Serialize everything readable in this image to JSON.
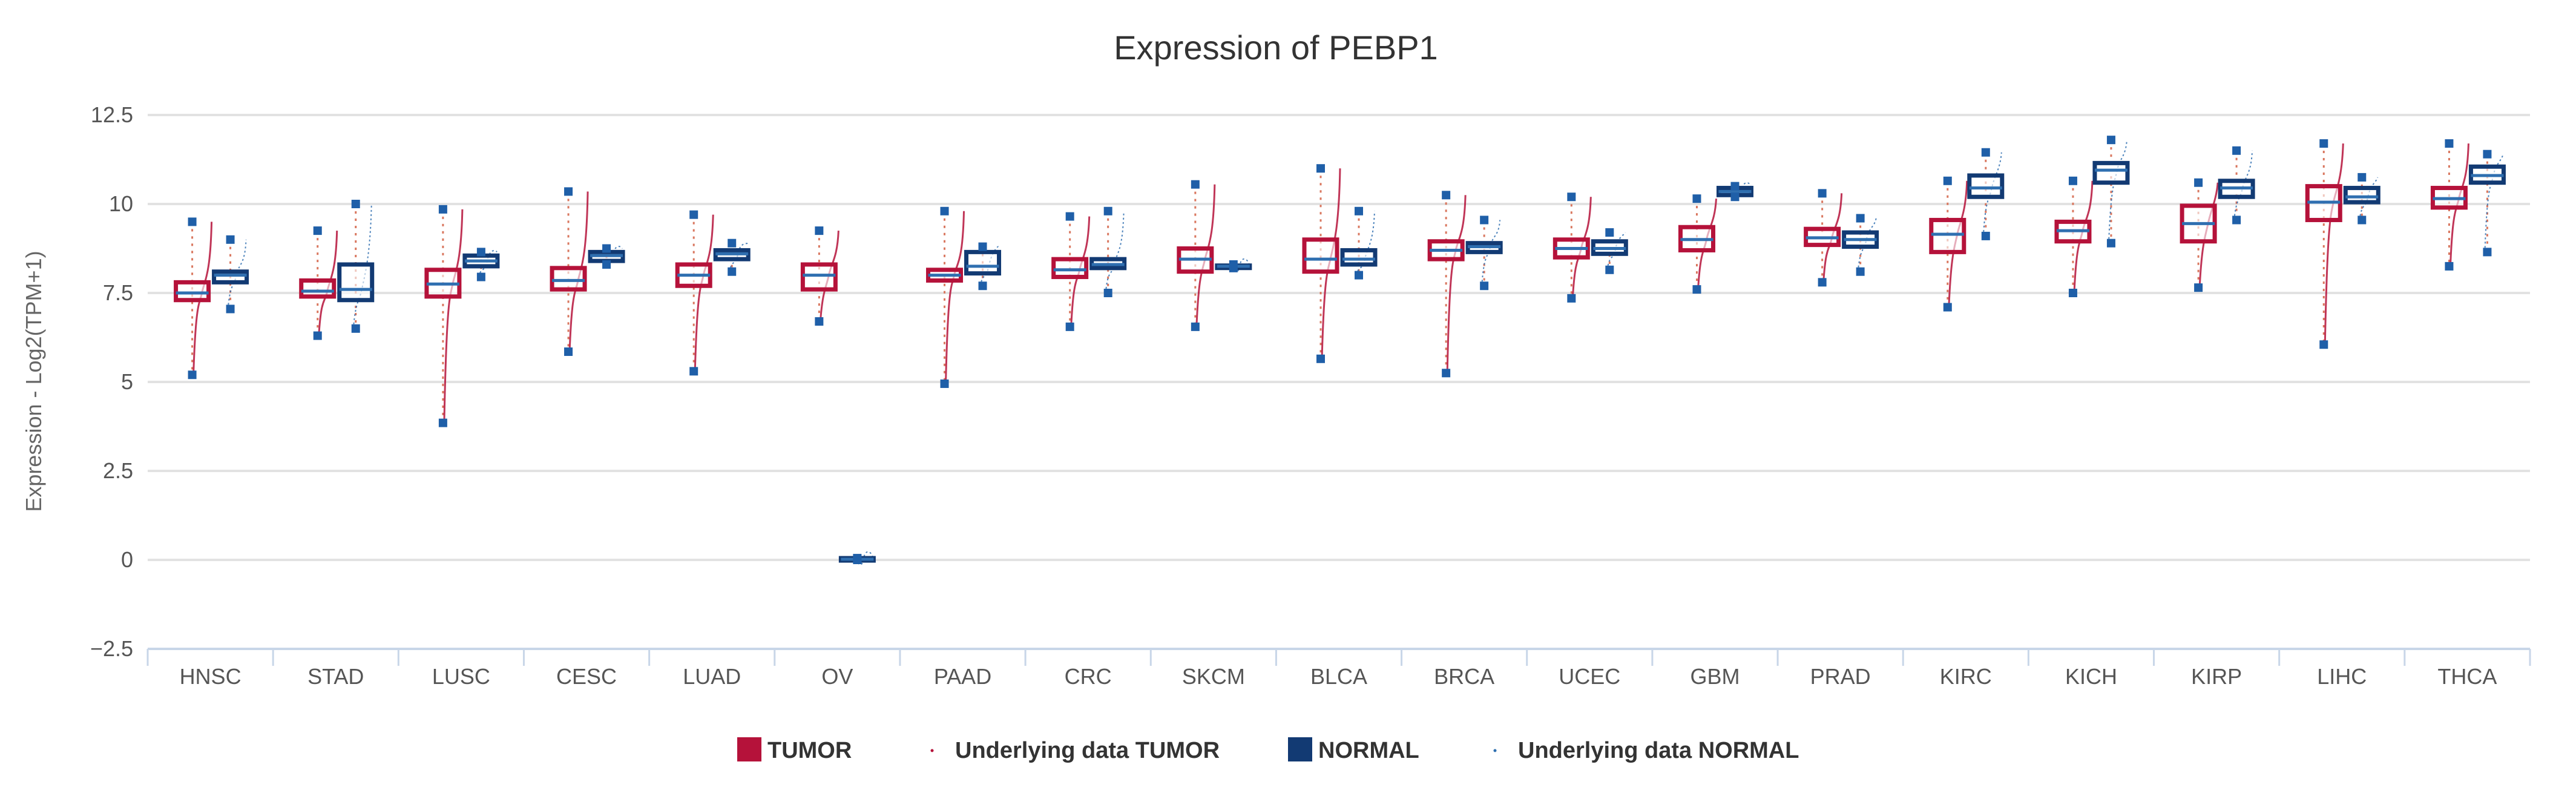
{
  "chart_data": {
    "type": "boxplot",
    "title": "Expression of PEBP1",
    "xlabel": "",
    "ylabel": "Expression - Log2(TPM+1)",
    "ylim": [
      -2.5,
      12.5
    ],
    "yticks": [
      "12.5",
      "10",
      "7.5",
      "5",
      "2.5",
      "0",
      "−2.5"
    ],
    "ytick_values": [
      12.5,
      10,
      7.5,
      5,
      2.5,
      0,
      -2.5
    ],
    "grid": true,
    "legend_position": "bottom-center",
    "colors": {
      "tumor": "#b5123a",
      "normal": "#123a73",
      "median": "#2f6fb0",
      "outlier": "#1f5fa8",
      "grid": "#e2e2e2",
      "axis": "#c8d6e8"
    },
    "categories": [
      "HNSC",
      "STAD",
      "LUSC",
      "CESC",
      "LUAD",
      "OV",
      "PAAD",
      "CRC",
      "SKCM",
      "BLCA",
      "BRCA",
      "UCEC",
      "GBM",
      "PRAD",
      "KIRC",
      "KICH",
      "KIRP",
      "LIHC",
      "THCA"
    ],
    "series": [
      {
        "name": "TUMOR",
        "stats_order": [
          "min",
          "q1",
          "median",
          "q3",
          "max"
        ],
        "values": [
          [
            5.2,
            7.3,
            7.5,
            7.8,
            9.5
          ],
          [
            6.3,
            7.4,
            7.55,
            7.85,
            9.25
          ],
          [
            3.85,
            7.4,
            7.75,
            8.15,
            9.85
          ],
          [
            5.85,
            7.6,
            7.85,
            8.2,
            10.35
          ],
          [
            5.3,
            7.7,
            8.0,
            8.3,
            9.7
          ],
          [
            6.7,
            7.6,
            8.0,
            8.3,
            9.25
          ],
          [
            4.95,
            7.85,
            8.0,
            8.15,
            9.8
          ],
          [
            6.55,
            7.95,
            8.15,
            8.45,
            9.65
          ],
          [
            6.55,
            8.1,
            8.45,
            8.75,
            10.55
          ],
          [
            5.65,
            8.1,
            8.45,
            9.0,
            11.0
          ],
          [
            5.25,
            8.45,
            8.7,
            8.95,
            10.25
          ],
          [
            7.35,
            8.5,
            8.75,
            9.0,
            10.2
          ],
          [
            7.6,
            8.7,
            9.0,
            9.35,
            10.15
          ],
          [
            7.8,
            8.85,
            9.05,
            9.3,
            10.3
          ],
          [
            7.1,
            8.65,
            9.15,
            9.55,
            10.65
          ],
          [
            7.5,
            8.95,
            9.25,
            9.5,
            10.65
          ],
          [
            7.65,
            8.95,
            9.45,
            9.95,
            10.6
          ],
          [
            6.05,
            9.55,
            10.05,
            10.5,
            11.7
          ],
          [
            8.25,
            9.9,
            10.15,
            10.45,
            11.7
          ]
        ]
      },
      {
        "name": "NORMAL",
        "stats_order": [
          "min",
          "q1",
          "median",
          "q3",
          "max"
        ],
        "values": [
          [
            7.05,
            7.8,
            8.0,
            8.1,
            9.0
          ],
          [
            6.5,
            7.3,
            7.6,
            8.3,
            10.0
          ],
          [
            7.95,
            8.25,
            8.4,
            8.55,
            8.65
          ],
          [
            8.3,
            8.4,
            8.55,
            8.65,
            8.75
          ],
          [
            8.1,
            8.45,
            8.6,
            8.7,
            8.9
          ],
          [
            0,
            0,
            0.02,
            0.05,
            0.05
          ],
          [
            7.7,
            8.05,
            8.25,
            8.65,
            8.8
          ],
          [
            7.5,
            8.2,
            8.3,
            8.45,
            9.8
          ],
          [
            8.2,
            8.23,
            8.25,
            8.27,
            8.3
          ],
          [
            8.0,
            8.3,
            8.45,
            8.7,
            9.8
          ],
          [
            7.7,
            8.65,
            8.8,
            8.9,
            9.55
          ],
          [
            8.15,
            8.6,
            8.75,
            8.95,
            9.2
          ],
          [
            10.2,
            10.25,
            10.35,
            10.45,
            10.5
          ],
          [
            8.1,
            8.8,
            9.0,
            9.2,
            9.6
          ],
          [
            9.1,
            10.2,
            10.45,
            10.8,
            11.45
          ],
          [
            8.9,
            10.6,
            10.95,
            11.15,
            11.8
          ],
          [
            9.55,
            10.2,
            10.45,
            10.65,
            11.5
          ],
          [
            9.55,
            10.05,
            10.2,
            10.45,
            10.75
          ],
          [
            8.65,
            10.6,
            10.8,
            11.05,
            11.4
          ]
        ]
      }
    ],
    "legend": [
      "TUMOR",
      "Underlying data TUMOR",
      "NORMAL",
      "Underlying data NORMAL"
    ]
  }
}
